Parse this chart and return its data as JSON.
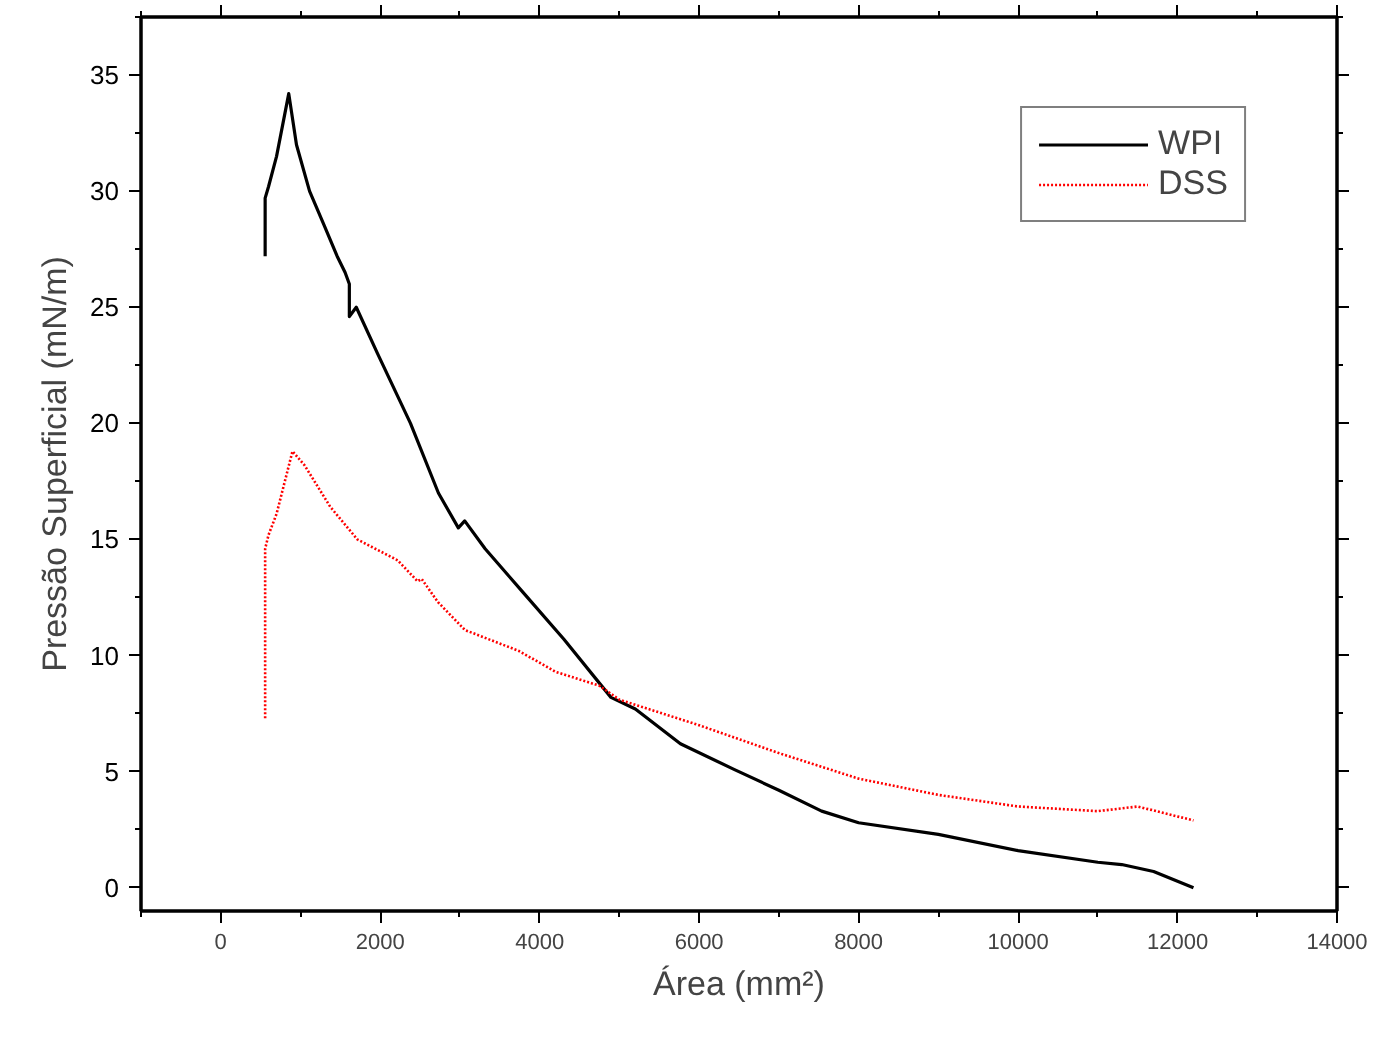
{
  "chart_data": {
    "type": "line",
    "xlabel": "Área (mm²)",
    "ylabel": "Pressão Superficial (mN/m)",
    "xlim": [
      -1000,
      14000
    ],
    "xticks": [
      0,
      2000,
      4000,
      6000,
      8000,
      10000,
      12000,
      14000
    ],
    "ylim": [
      -1,
      37.5
    ],
    "yticks": [
      0,
      5,
      10,
      15,
      20,
      25,
      30,
      35
    ],
    "grid": false,
    "legend": "top right",
    "marker": "none",
    "series": [
      {
        "name": "WPI",
        "color": "#000000",
        "line_style": "solid",
        "x": [
          557,
          557,
          600,
          700,
          853,
          950,
          1114,
          1300,
          1460,
          1560,
          1613,
          1613,
          1700,
          1967,
          2380,
          2730,
          2980,
          3060,
          3316,
          3797,
          4304,
          4894,
          5200,
          5765,
          6437,
          7000,
          7537,
          8000,
          9000,
          10000,
          11000,
          11300,
          11700,
          12200
        ],
        "values": [
          27.2,
          29.7,
          30.2,
          31.5,
          34.2,
          32.0,
          30.0,
          28.5,
          27.2,
          26.5,
          26.0,
          24.6,
          25.0,
          23.0,
          20.0,
          17.0,
          15.5,
          15.8,
          14.6,
          12.7,
          10.7,
          8.2,
          7.7,
          6.2,
          5.1,
          4.2,
          3.3,
          2.8,
          2.3,
          1.6,
          1.1,
          1.0,
          0.7,
          0.0
        ]
      },
      {
        "name": "DSS",
        "color": "#ff0000",
        "line_style": "dotted",
        "x": [
          557,
          557,
          600,
          700,
          900,
          1050,
          1375,
          1714,
          2220,
          2468,
          2520,
          2725,
          3063,
          3739,
          4200,
          4750,
          5000,
          6000,
          7000,
          8000,
          9000,
          10000,
          11000,
          11500,
          12200
        ],
        "values": [
          7.3,
          14.6,
          15.2,
          16.1,
          18.8,
          18.2,
          16.4,
          15.0,
          14.1,
          13.2,
          13.3,
          12.3,
          11.1,
          10.2,
          9.3,
          8.7,
          8.1,
          7.0,
          5.8,
          4.7,
          4.0,
          3.5,
          3.3,
          3.5,
          2.9
        ]
      }
    ]
  }
}
